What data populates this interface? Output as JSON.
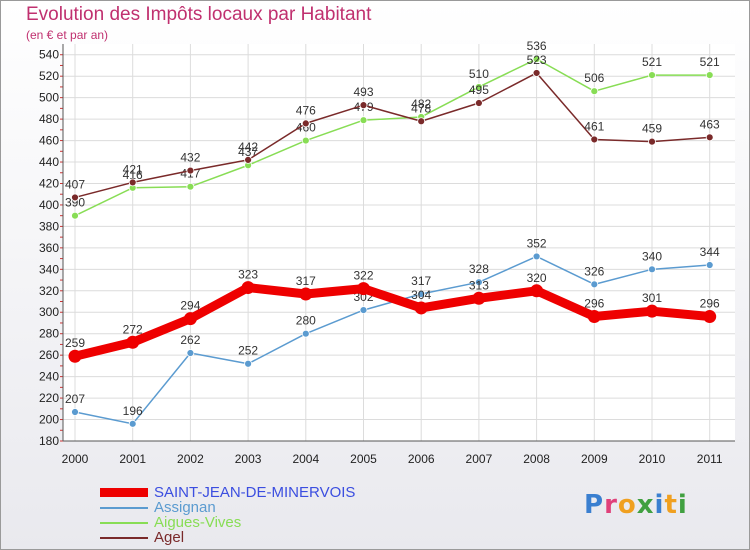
{
  "header": {
    "title": "Evolution des Impôts locaux par Habitant",
    "subtitle": "(en € et par an)"
  },
  "logo": {
    "text": "Proxiti",
    "letters": [
      "P",
      "r",
      "o",
      "x",
      "i",
      "t",
      "i"
    ],
    "colors": [
      "#3a7fd0",
      "#e0407a",
      "#f0a020",
      "#40a040",
      "#3a7fd0",
      "#f0a020",
      "#40a040"
    ]
  },
  "chart_data": {
    "type": "line",
    "title": "Evolution des Impôts locaux par Habitant",
    "subtitle": "(en € et par an)",
    "xlabel": "",
    "ylabel": "",
    "x": [
      "2000",
      "2001",
      "2002",
      "2003",
      "2004",
      "2005",
      "2006",
      "2007",
      "2008",
      "2009",
      "2010",
      "2011"
    ],
    "ylim": [
      180,
      550
    ],
    "yticks": [
      180,
      200,
      220,
      240,
      260,
      280,
      300,
      320,
      340,
      360,
      380,
      400,
      420,
      440,
      460,
      480,
      500,
      520,
      540
    ],
    "grid": true,
    "legend_position": "bottom-left",
    "series": [
      {
        "name": "SAINT-JEAN-DE-MINERVOIS",
        "color": "#ee0000",
        "highlight": true,
        "values": [
          259,
          272,
          294,
          323,
          317,
          322,
          304,
          313,
          320,
          296,
          301,
          296
        ]
      },
      {
        "name": "Assignan",
        "color": "#5b9bd0",
        "highlight": false,
        "values": [
          207,
          196,
          262,
          252,
          280,
          302,
          317,
          328,
          352,
          326,
          340,
          344
        ]
      },
      {
        "name": "Aigues-Vives",
        "color": "#88dd55",
        "highlight": false,
        "values": [
          390,
          416,
          417,
          437,
          460,
          479,
          482,
          510,
          536,
          506,
          521,
          521
        ]
      },
      {
        "name": "Agel",
        "color": "#7a2a2a",
        "highlight": false,
        "values": [
          407,
          421,
          432,
          442,
          476,
          493,
          478,
          495,
          523,
          461,
          459,
          463
        ]
      }
    ]
  }
}
